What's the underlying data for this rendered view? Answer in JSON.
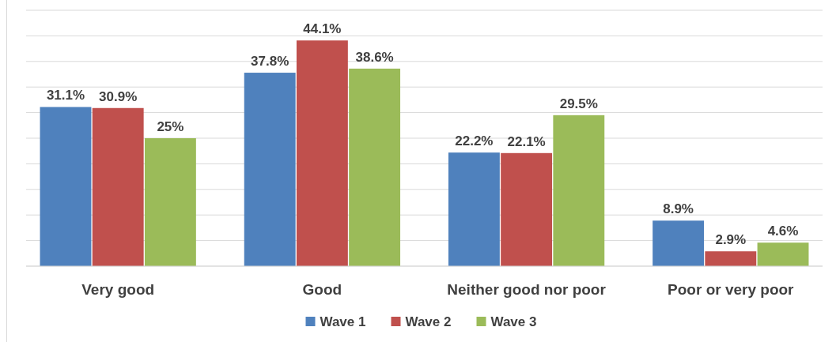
{
  "chart_data": {
    "type": "bar",
    "categories": [
      "Very good",
      "Good",
      "Neither good nor poor",
      "Poor or very poor"
    ],
    "series": [
      {
        "name": "Wave 1",
        "color": "#4f81bd",
        "values": [
          31.1,
          37.8,
          22.2,
          8.9
        ],
        "value_labels": [
          "31.1%",
          "37.8%",
          "22.2%",
          "8.9%"
        ]
      },
      {
        "name": "Wave 2",
        "color": "#c0504d",
        "values": [
          30.9,
          44.1,
          22.1,
          2.9
        ],
        "value_labels": [
          "30.9%",
          "44.1%",
          "22.1%",
          "2.9%"
        ]
      },
      {
        "name": "Wave 3",
        "color": "#9bbb59",
        "values": [
          25,
          38.6,
          29.5,
          4.6
        ],
        "value_labels": [
          "25%",
          "38.6%",
          "29.5%",
          "4.6%"
        ]
      }
    ],
    "ylim": [
      0,
      50
    ],
    "yticks": [
      {
        "value": 0,
        "label": null
      },
      {
        "value": 5,
        "label": null
      },
      {
        "value": 10,
        "label": null
      },
      {
        "value": 15,
        "label": null
      },
      {
        "value": 20,
        "label": null
      },
      {
        "value": 25,
        "label": null
      },
      {
        "value": 30,
        "label": null
      },
      {
        "value": 35,
        "label": null
      },
      {
        "value": 40,
        "label": null
      },
      {
        "value": 45,
        "label": null
      },
      {
        "value": 50,
        "label": null
      }
    ],
    "grid": "y",
    "tick_labels": "x",
    "legend": "bottom"
  }
}
